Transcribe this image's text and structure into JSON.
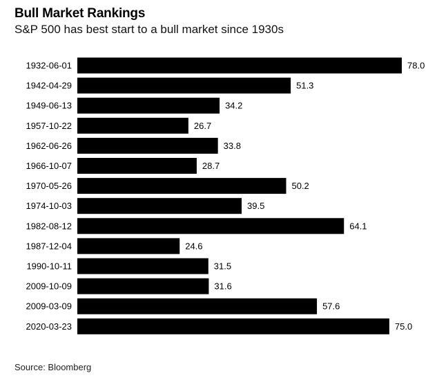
{
  "chart_data": {
    "type": "bar",
    "orientation": "horizontal",
    "title": "Bull Market Rankings",
    "subtitle": "S&P 500 has best start to a bull market since 1930s",
    "source": "Source: Bloomberg",
    "categories": [
      "1932-06-01",
      "1942-04-29",
      "1949-06-13",
      "1957-10-22",
      "1962-06-26",
      "1966-10-07",
      "1970-05-26",
      "1974-10-03",
      "1982-08-12",
      "1987-12-04",
      "1990-10-11",
      "2009-10-09",
      "2009-03-09",
      "2020-03-23"
    ],
    "values": [
      78.0,
      51.3,
      34.2,
      26.7,
      33.8,
      28.7,
      50.2,
      39.5,
      64.1,
      24.6,
      31.5,
      31.6,
      57.6,
      75.0
    ],
    "value_labels": [
      "78.0",
      "51.3",
      "34.2",
      "26.7",
      "33.8",
      "28.7",
      "50.2",
      "39.5",
      "64.1",
      "24.6",
      "31.5",
      "31.6",
      "57.6",
      "75.0"
    ],
    "xlim": [
      0,
      78
    ],
    "bar_color": "#000000",
    "grid": false,
    "legend": "none"
  }
}
